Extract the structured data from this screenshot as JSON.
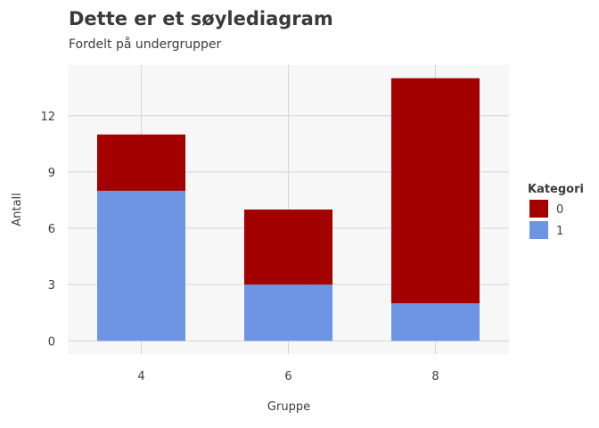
{
  "chart_data": {
    "type": "bar",
    "stacked": true,
    "title": "Dette er et søylediagram",
    "subtitle": "Fordelt på undergrupper",
    "xlabel": "Gruppe",
    "ylabel": "Antall",
    "categories": [
      "4",
      "6",
      "8"
    ],
    "series": [
      {
        "name": "1",
        "values": [
          8,
          3,
          2
        ],
        "color": "#6d95e3"
      },
      {
        "name": "0",
        "values": [
          3,
          4,
          12
        ],
        "color": "#a30000"
      }
    ],
    "yticks": [
      "0",
      "3",
      "6",
      "9",
      "12"
    ],
    "ylim": [
      -0.7,
      14.7
    ],
    "grid": true,
    "legend": {
      "title": "Kategori",
      "placement": "right",
      "entries": [
        {
          "label": "0",
          "color": "#a30000"
        },
        {
          "label": "1",
          "color": "#6d95e3"
        }
      ]
    }
  }
}
